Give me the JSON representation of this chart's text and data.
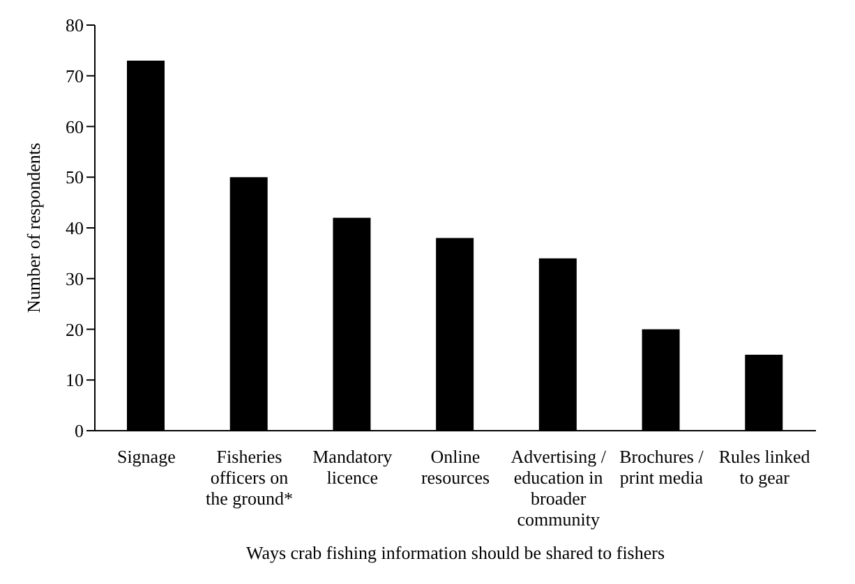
{
  "chart_data": {
    "type": "bar",
    "xlabel": "Ways crab fishing information should be shared to fishers",
    "ylabel": "Number of respondents",
    "categories": [
      "Signage",
      "Fisheries officers on the ground*",
      "Mandatory licence",
      "Online resources",
      "Advertising / education in broader community",
      "Brochures / print media",
      "Rules linked to gear"
    ],
    "values": [
      73,
      50,
      42,
      38,
      34,
      20,
      15
    ],
    "color": "#000000",
    "ylim": [
      0,
      80
    ],
    "yticks": [
      0,
      10,
      20,
      30,
      40,
      50,
      60,
      70,
      80
    ],
    "grid": false,
    "legend": false
  }
}
